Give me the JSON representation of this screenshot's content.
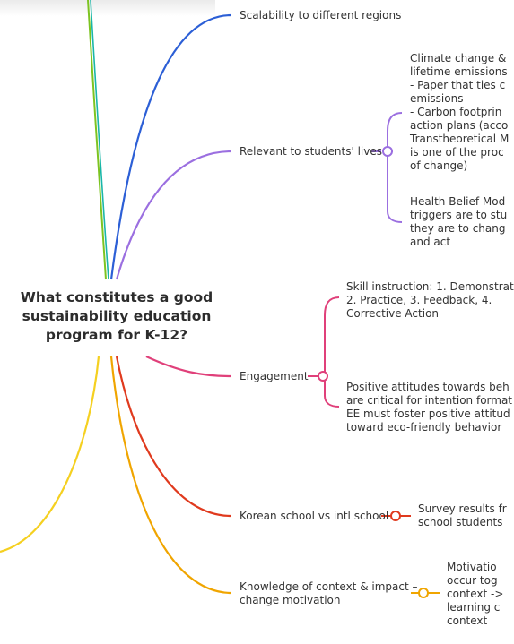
{
  "central_topic": {
    "line1": "What constitutes a good",
    "line2": "sustainability education",
    "line3": "program for K-12?"
  },
  "branches": {
    "scalability": {
      "label": "Scalability to different regions",
      "color": "#2c5fd6"
    },
    "relevant": {
      "label": "Relevant to students' lives",
      "color": "#9b6fe0",
      "notes": [
        [
          "Climate change &",
          "lifetime emissions",
          "- Paper that ties c",
          "emissions",
          "- Carbon footprin",
          "action plans (acco",
          "Transtheoretical M",
          "is one of the proc",
          "of change)"
        ],
        [
          "Health Belief Mod",
          "triggers are to stu",
          "they are to chang",
          "and act"
        ]
      ]
    },
    "engagement": {
      "label": "Engagement",
      "color": "#e0407a",
      "notes": [
        [
          "Skill instruction: 1. Demonstrat",
          "2. Practice, 3. Feedback, 4.",
          "Corrective Action"
        ],
        [
          "Positive attitudes towards beh",
          "are critical for intention format",
          "EE must foster positive attitud",
          "toward eco-friendly behavior"
        ]
      ]
    },
    "korean": {
      "label": "Korean school vs intl school",
      "color": "#e03a1e",
      "notes": [
        [
          "Survey results fr",
          "school students"
        ]
      ]
    },
    "knowledge": {
      "label_line1": "Knowledge of context & impact –",
      "label_line2": "change motivation",
      "color": "#f0a500",
      "notes": [
        [
          "Motivatio",
          "occur tog",
          "context ->",
          "learning c",
          "context"
        ]
      ]
    }
  },
  "other_colors": {
    "green": "#7dc421",
    "teal": "#19b6a8",
    "yellow": "#f5d020"
  }
}
